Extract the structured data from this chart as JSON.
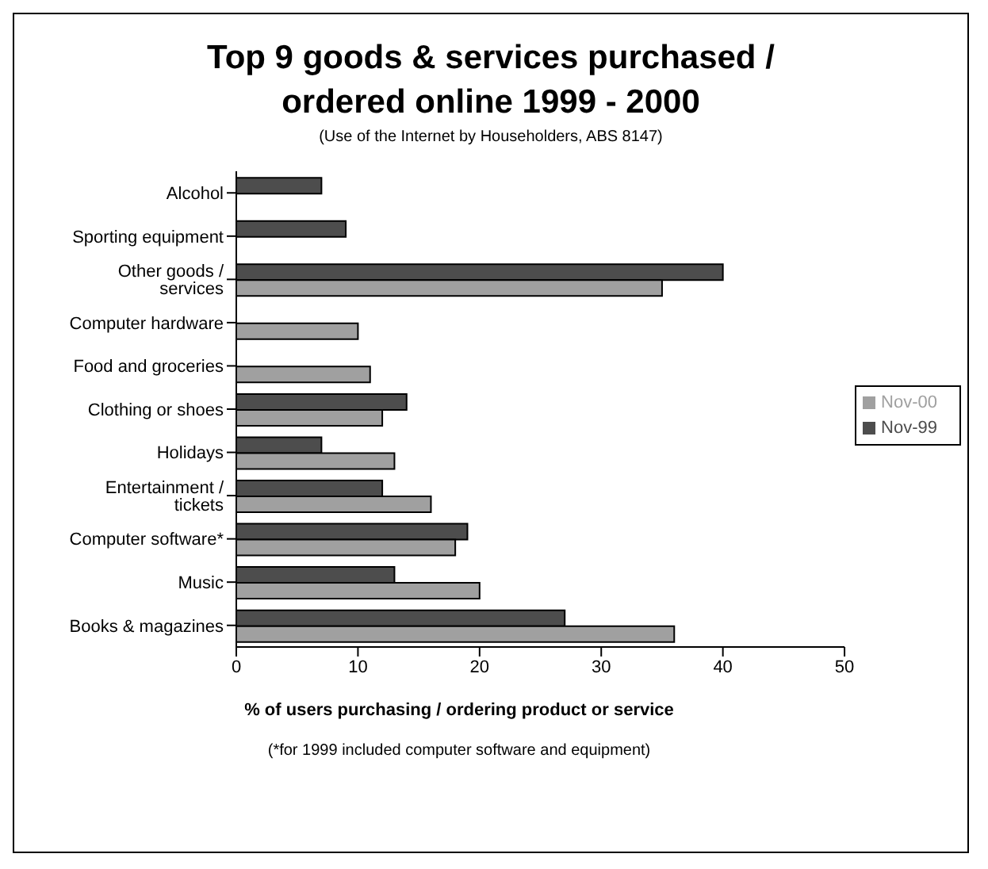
{
  "chart_data": {
    "type": "bar",
    "orientation": "horizontal",
    "title": "Top 9 goods & services purchased / ordered online  1999 - 2000",
    "subtitle": "(Use of the Internet by Householders, ABS 8147)",
    "xlabel": "% of users purchasing / ordering product or service",
    "annotations": [
      "(*for 1999 included computer software and equipment)"
    ],
    "categories": [
      "Alcohol",
      "Sporting equipment",
      "Other goods / services",
      "Computer hardware",
      "Food and groceries",
      "Clothing or shoes",
      "Holidays",
      "Entertainment / tickets",
      "Computer software*",
      "Music",
      "Books & magazines"
    ],
    "series": [
      {
        "name": "Nov-99",
        "color": "#4d4d4d",
        "values": [
          7,
          9,
          40,
          null,
          null,
          14,
          7,
          12,
          19,
          13,
          27
        ]
      },
      {
        "name": "Nov-00",
        "color": "#a0a0a0",
        "values": [
          null,
          null,
          35,
          10,
          11,
          12,
          13,
          16,
          18,
          20,
          36
        ]
      }
    ],
    "xlim": [
      0,
      50
    ],
    "xticks": [
      0,
      10,
      20,
      30,
      40,
      50
    ],
    "legend": "right"
  }
}
